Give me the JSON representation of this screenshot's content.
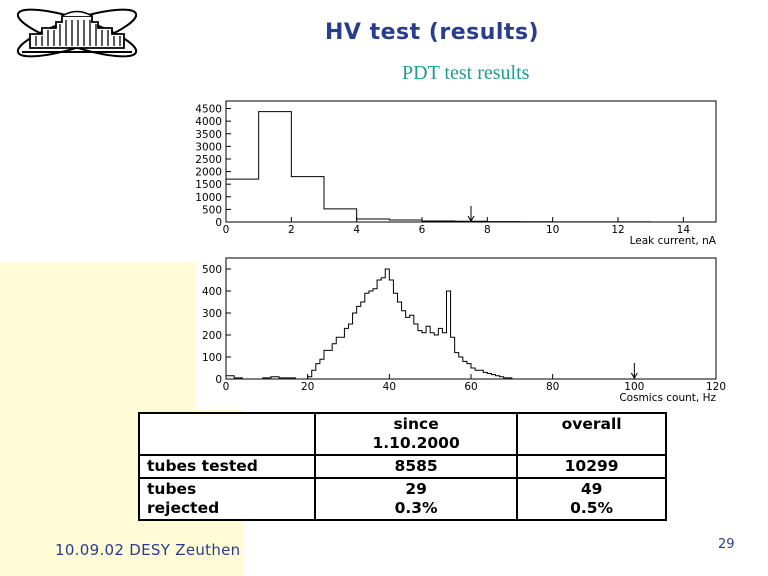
{
  "slide": {
    "title": "HV test (results)",
    "subtitle": "PDT test results",
    "footer": "10.09.02 DESY Zeuthen",
    "page_number": "29",
    "colors": {
      "title": "#2a3d8c",
      "subtitle": "#1e9d8c",
      "background_accent": "#fffbd6"
    }
  },
  "chart_data": [
    {
      "type": "histogram",
      "xlabel": "Leak current, nA",
      "xlim": [
        0,
        15
      ],
      "ylim": [
        0,
        4800
      ],
      "xticks": [
        0,
        2,
        4,
        6,
        8,
        10,
        12,
        14
      ],
      "yticks": [
        0,
        500,
        1000,
        1500,
        2000,
        2500,
        3000,
        3500,
        4000,
        4500
      ],
      "bin_edges": [
        0,
        1,
        2,
        3,
        4,
        5,
        6,
        7,
        8,
        9,
        10,
        11,
        12,
        13,
        14,
        15
      ],
      "values": [
        1700,
        4380,
        1800,
        520,
        120,
        80,
        40,
        30,
        15,
        10,
        5,
        5,
        3,
        2,
        2
      ],
      "cut_arrow_x": 7.5
    },
    {
      "type": "histogram",
      "xlabel": "Cosmics count, Hz",
      "xlim": [
        0,
        120
      ],
      "ylim": [
        0,
        550
      ],
      "xticks": [
        0,
        20,
        40,
        60,
        80,
        100,
        120
      ],
      "yticks": [
        0,
        100,
        200,
        300,
        400,
        500
      ],
      "bin_width": 1,
      "bin_start": 0,
      "values": [
        15,
        15,
        5,
        5,
        0,
        0,
        0,
        0,
        0,
        5,
        5,
        10,
        10,
        5,
        5,
        5,
        5,
        0,
        0,
        0,
        10,
        40,
        70,
        90,
        130,
        130,
        160,
        190,
        190,
        230,
        250,
        300,
        330,
        350,
        390,
        400,
        410,
        450,
        460,
        500,
        450,
        390,
        350,
        310,
        280,
        290,
        250,
        220,
        210,
        240,
        210,
        200,
        230,
        210,
        400,
        190,
        120,
        100,
        80,
        70,
        50,
        40,
        40,
        30,
        25,
        20,
        15,
        10,
        5,
        5,
        0,
        0,
        0,
        0,
        0,
        0,
        0,
        0,
        0,
        0,
        0,
        0,
        0,
        0,
        0,
        0,
        0,
        0,
        0,
        0,
        0,
        0,
        0,
        0,
        0,
        0,
        0,
        0,
        0,
        0,
        0,
        0,
        0,
        0,
        0,
        0,
        0,
        0,
        0,
        0,
        0,
        0,
        0,
        0,
        0,
        0,
        0,
        0,
        0,
        0
      ],
      "cut_arrow_x": 100
    }
  ],
  "table": {
    "header": [
      "",
      "since\n1.10.2000",
      "overall"
    ],
    "rows": [
      [
        "tubes tested",
        "8585",
        "10299"
      ],
      [
        "tubes\nrejected",
        "29\n0.3%",
        "49\n0.5%"
      ]
    ]
  }
}
